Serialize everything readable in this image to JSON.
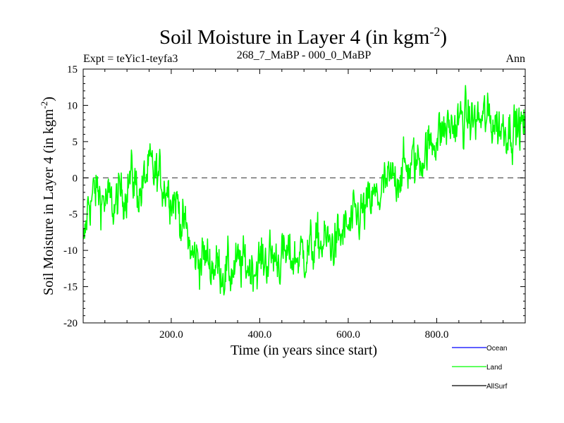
{
  "chart_data": {
    "type": "line",
    "title": "Soil Moisture in Layer 4 (in kgm",
    "title_sup": "-2",
    "title_close": ")",
    "subtitle_left": "Expt = teYic1-teyfa3",
    "subtitle_center": "268_7_MaBP - 000_0_MaBP",
    "subtitle_right": "Ann",
    "xlabel": "Time (in years since start)",
    "ylabel": "Soil Moisture in Layer 4 (in kgm",
    "ylabel_sup": "-2",
    "ylabel_close": ")",
    "xlim": [
      1,
      1000
    ],
    "ylim": [
      -20,
      15
    ],
    "x_ticks": [
      200,
      400,
      600,
      800
    ],
    "x_tick_labels": [
      "200.0",
      "400.0",
      "600.0",
      "800.0"
    ],
    "y_ticks": [
      15,
      10,
      5,
      0,
      -5,
      -10,
      -15,
      -20
    ],
    "y_tick_labels": [
      "15",
      "10",
      "5",
      "0",
      "-5",
      "-10",
      "-15",
      "-20"
    ],
    "reference_line": 0,
    "legend": [
      {
        "name": "Ocean",
        "color": "#0000ff"
      },
      {
        "name": "Land",
        "color": "#00ff00"
      },
      {
        "name": "AllSurf",
        "color": "#000000"
      }
    ],
    "series": [
      {
        "name": "Land",
        "color": "#00ff00",
        "anchors_x": [
          1,
          15,
          30,
          50,
          70,
          90,
          110,
          130,
          150,
          170,
          190,
          210,
          230,
          250,
          270,
          300,
          330,
          360,
          390,
          420,
          450,
          480,
          510,
          540,
          570,
          600,
          630,
          660,
          690,
          720,
          750,
          780,
          800,
          830,
          860,
          890,
          920,
          950,
          980,
          1000
        ],
        "anchors_y": [
          -10,
          -3,
          -2,
          -3,
          -4,
          -2,
          0,
          -2,
          1,
          0,
          -1,
          -3,
          -7,
          -11,
          -11,
          -12,
          -13,
          -12,
          -12,
          -11,
          -11,
          -11,
          -10,
          -9,
          -9,
          -7,
          -5,
          -3,
          -1,
          1,
          2,
          4,
          6,
          7,
          8,
          8,
          8,
          7,
          7,
          7
        ],
        "noise_amplitude": 2.6,
        "num_points": 1000
      }
    ]
  }
}
